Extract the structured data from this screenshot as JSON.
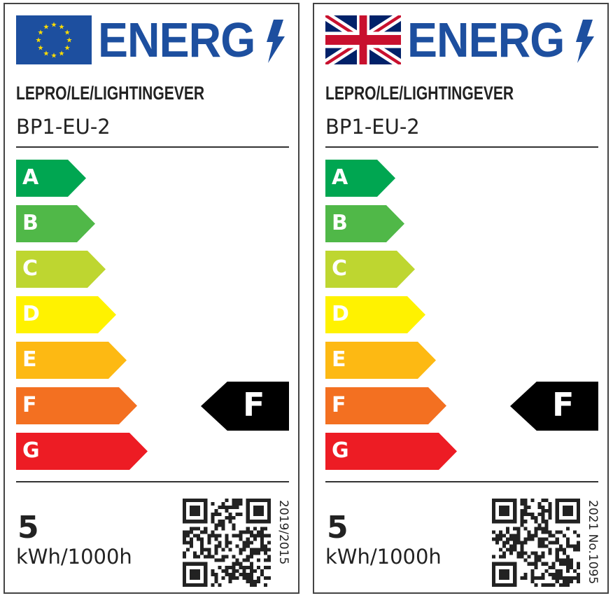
{
  "labels": [
    {
      "flag": "eu-flag",
      "title": "ENERG",
      "brand": "LEPRO/LE/LIGHTINGEVER",
      "model": "BP1-EU-2",
      "rating": "F",
      "consumption": "5",
      "unit": "kWh/1000h",
      "regulation": "2019/2015"
    },
    {
      "flag": "uk-flag",
      "title": "ENERG",
      "brand": "LEPRO/LE/LIGHTINGEVER",
      "model": "BP1-EU-2",
      "rating": "F",
      "consumption": "5",
      "unit": "kWh/1000h",
      "regulation": "2021 No.1095"
    }
  ],
  "classes": [
    {
      "letter": "A",
      "color": "#00a651"
    },
    {
      "letter": "B",
      "color": "#50b848"
    },
    {
      "letter": "C",
      "color": "#bed630"
    },
    {
      "letter": "D",
      "color": "#fff200"
    },
    {
      "letter": "E",
      "color": "#fdb913"
    },
    {
      "letter": "F",
      "color": "#f37021"
    },
    {
      "letter": "G",
      "color": "#ed1c24"
    }
  ],
  "colors": {
    "brand_blue": "#1d4f9f",
    "eu_star": "#ffdd00"
  }
}
